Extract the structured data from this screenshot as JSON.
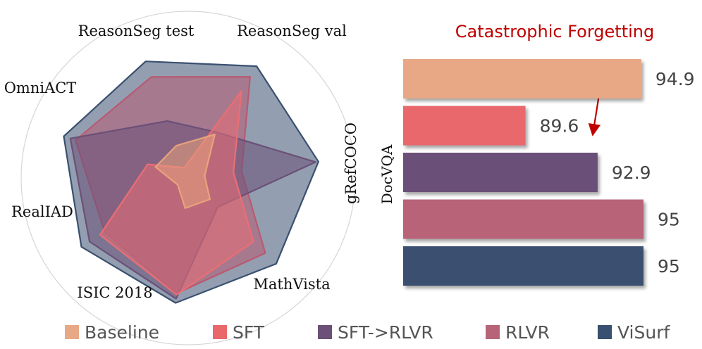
{
  "chart_data": [
    {
      "type": "radar",
      "axes": [
        "ReasonSeg test",
        "ReasonSeg val",
        "gRefCOCO",
        "MathVista",
        "ISIC 2018",
        "RealIAD",
        "OmniACT"
      ],
      "range": [
        0,
        1
      ],
      "series": [
        {
          "name": "ViSurf",
          "color": "#3a5070",
          "values": [
            0.9,
            0.95,
            0.95,
            0.89,
            0.91,
            0.92,
            0.95
          ]
        },
        {
          "name": "RLVR",
          "color": "#b85a72",
          "values": [
            0.78,
            0.86,
            0.39,
            0.78,
            0.84,
            0.72,
            0.86
          ]
        },
        {
          "name": "SFT->RLVR",
          "color": "#6b5078",
          "values": [
            0.44,
            0.39,
            0.93,
            0.3,
            0.88,
            0.85,
            0.9
          ]
        },
        {
          "name": "SFT",
          "color": "#ea6e74",
          "values": [
            0.08,
            0.74,
            0.33,
            0.66,
            0.85,
            0.76,
            0.31
          ]
        },
        {
          "name": "Baseline",
          "color": "#e8a27c",
          "values": [
            0.25,
            0.37,
            0.12,
            0.22,
            0.22,
            0.09,
            0.25
          ]
        }
      ]
    },
    {
      "type": "bar",
      "orientation": "horizontal",
      "ylabel": "DocVQA",
      "categories": [
        "Baseline",
        "SFT",
        "SFT->RLVR",
        "RLVR",
        "ViSurf"
      ],
      "values": [
        94.9,
        89.6,
        92.9,
        95,
        95
      ],
      "value_labels": [
        "94.9",
        "89.6",
        "92.9",
        "95",
        "95"
      ],
      "colors": [
        "#e8a886",
        "#e8686c",
        "#6b5078",
        "#b86478",
        "#3a5070"
      ],
      "xlim": [
        84.0,
        95.0
      ],
      "annotation": "Catastrophic Forgetting"
    }
  ],
  "legend": [
    {
      "label": "Baseline",
      "color": "#e8a886"
    },
    {
      "label": "SFT",
      "color": "#e8686c"
    },
    {
      "label": "SFT->RLVR",
      "color": "#6b5078"
    },
    {
      "label": "RLVR",
      "color": "#b86478"
    },
    {
      "label": "ViSurf",
      "color": "#3a5070"
    }
  ]
}
